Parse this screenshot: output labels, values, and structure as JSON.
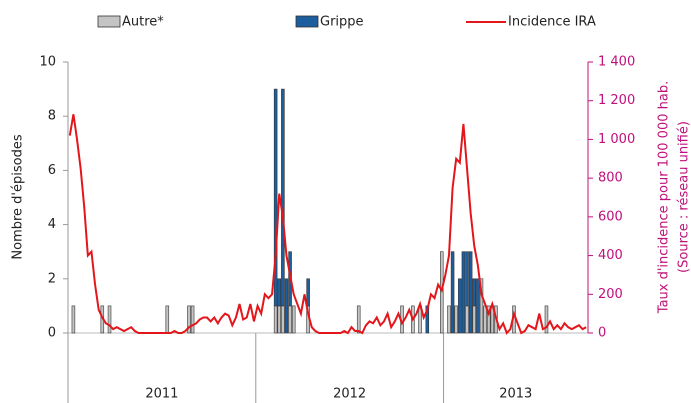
{
  "chart_data": {
    "type": "bar-line",
    "y_label": "Nombre d'épisodes",
    "y2_label": [
      "Taux d'incidence pour 100 000 hab.",
      "(Source : réseau unifié)"
    ],
    "categories": [
      null,
      null,
      null,
      null,
      null,
      null,
      null,
      null,
      null,
      null,
      null,
      null,
      null,
      null,
      null,
      null,
      null,
      null,
      null,
      null,
      null,
      null,
      null,
      null,
      null,
      null,
      null,
      null,
      null,
      null,
      null,
      null,
      null,
      null,
      null,
      null,
      null,
      null,
      null,
      null,
      null,
      null,
      null,
      null,
      null,
      null,
      null,
      null,
      null,
      null,
      null,
      null,
      null,
      null,
      null,
      null,
      null,
      null,
      null,
      null,
      null,
      null,
      null,
      null,
      null,
      null,
      null,
      null,
      null,
      null,
      null,
      null,
      null,
      null,
      null,
      null,
      null,
      null,
      null,
      null,
      null,
      null,
      null,
      null,
      null,
      null,
      null,
      null,
      null,
      null,
      null,
      null,
      null,
      null,
      null,
      null,
      null,
      null,
      null,
      null,
      null,
      null,
      null,
      null,
      null,
      null,
      null,
      null,
      null,
      null,
      null,
      null,
      null,
      null,
      null,
      null,
      null,
      null,
      null,
      null,
      null,
      null,
      null,
      null,
      null,
      null,
      null,
      null,
      null,
      null,
      null,
      null,
      null,
      null,
      null,
      null,
      null,
      null,
      null,
      null,
      null,
      null,
      null,
      null
    ],
    "year_groups": [
      {
        "label": "2011",
        "weeks": 52
      },
      {
        "label": "2012",
        "weeks": 52
      },
      {
        "label": "2013",
        "weeks": 40
      }
    ],
    "series": [
      {
        "name": "Autre*",
        "kind": "bar",
        "color": "#c4c4c4",
        "values": [
          0,
          1,
          0,
          0,
          0,
          0,
          0,
          0,
          0,
          1,
          0,
          1,
          0,
          0,
          0,
          0,
          0,
          0,
          0,
          0,
          0,
          0,
          0,
          0,
          0,
          0,
          0,
          1,
          0,
          0,
          0,
          0,
          0,
          1,
          1,
          0,
          0,
          0,
          0,
          0,
          0,
          0,
          0,
          0,
          0,
          0,
          0,
          0,
          0,
          0,
          0,
          0,
          0,
          0,
          0,
          0,
          0,
          1,
          1,
          1,
          0,
          1,
          1,
          0,
          0,
          0,
          1,
          0,
          0,
          0,
          0,
          0,
          0,
          0,
          0,
          0,
          0,
          0,
          0,
          0,
          1,
          0,
          0,
          0,
          0,
          0,
          0,
          0,
          0,
          0,
          0,
          0,
          1,
          0,
          0,
          1,
          0,
          1,
          0,
          0,
          0,
          0,
          0,
          3,
          0,
          1,
          0,
          1,
          0,
          0,
          1,
          0,
          1,
          0,
          2,
          1,
          1,
          1,
          1,
          0,
          0,
          0,
          0,
          1,
          0,
          0,
          0,
          0,
          0,
          0,
          0,
          0,
          1,
          0,
          0,
          0,
          0,
          0,
          0,
          0,
          0,
          0,
          0,
          0
        ]
      },
      {
        "name": "Grippe",
        "kind": "bar",
        "color": "#1d5e9e",
        "values": [
          0,
          0,
          0,
          0,
          0,
          0,
          0,
          0,
          0,
          0,
          0,
          0,
          0,
          0,
          0,
          0,
          0,
          0,
          0,
          0,
          0,
          0,
          0,
          0,
          0,
          0,
          0,
          0,
          0,
          0,
          0,
          0,
          0,
          0,
          0,
          0,
          0,
          0,
          0,
          0,
          0,
          0,
          0,
          0,
          0,
          0,
          0,
          0,
          0,
          0,
          0,
          0,
          0,
          0,
          0,
          0,
          0,
          8,
          1,
          8,
          2,
          2,
          0,
          0,
          0,
          0,
          1,
          0,
          0,
          0,
          0,
          0,
          0,
          0,
          0,
          0,
          0,
          0,
          0,
          0,
          0,
          0,
          0,
          0,
          0,
          0,
          0,
          0,
          0,
          0,
          0,
          0,
          0,
          0,
          0,
          0,
          0,
          0,
          0,
          1,
          0,
          0,
          0,
          0,
          0,
          0,
          3,
          0,
          2,
          3,
          2,
          3,
          1,
          2,
          0,
          0,
          0,
          0,
          0,
          0,
          0,
          0,
          0,
          0,
          0,
          0,
          0,
          0,
          0,
          0,
          0,
          0,
          0,
          0,
          0,
          0,
          0,
          0,
          0,
          0,
          0,
          0,
          0,
          0
        ]
      },
      {
        "name": "Incidence IRA",
        "kind": "line",
        "axis": "y2",
        "color": "#e3161b",
        "values": [
          1020,
          1130,
          1000,
          850,
          650,
          400,
          420,
          250,
          120,
          80,
          50,
          40,
          20,
          30,
          20,
          10,
          20,
          30,
          10,
          0,
          0,
          0,
          0,
          0,
          0,
          0,
          0,
          0,
          0,
          10,
          0,
          0,
          10,
          30,
          40,
          50,
          70,
          80,
          80,
          60,
          80,
          50,
          80,
          100,
          90,
          40,
          80,
          150,
          70,
          80,
          150,
          60,
          140,
          100,
          200,
          180,
          200,
          400,
          720,
          600,
          400,
          300,
          200,
          150,
          100,
          200,
          100,
          30,
          10,
          0,
          0,
          0,
          0,
          0,
          0,
          0,
          10,
          0,
          30,
          10,
          10,
          0,
          40,
          60,
          50,
          80,
          40,
          60,
          100,
          30,
          60,
          100,
          50,
          80,
          120,
          70,
          100,
          150,
          80,
          120,
          200,
          180,
          250,
          220,
          300,
          400,
          750,
          900,
          880,
          1080,
          850,
          620,
          450,
          350,
          200,
          150,
          100,
          150,
          80,
          20,
          50,
          0,
          20,
          100,
          50,
          0,
          10,
          40,
          30,
          20,
          100,
          20,
          30,
          60,
          20,
          40,
          20,
          50,
          30,
          20,
          30,
          40,
          20,
          30
        ]
      }
    ],
    "ylim": [
      0,
      10
    ],
    "yticks": [
      0,
      2,
      4,
      6,
      8,
      10
    ],
    "y2lim": [
      0,
      1400
    ],
    "y2ticks": [
      0,
      200,
      400,
      600,
      800,
      {
        "value": 1000,
        "label": "1 000"
      },
      {
        "value": 1200,
        "label": "1 200"
      },
      {
        "value": 1400,
        "label": "1 400"
      }
    ],
    "y2_color": "#c0107a",
    "legend": "top"
  }
}
